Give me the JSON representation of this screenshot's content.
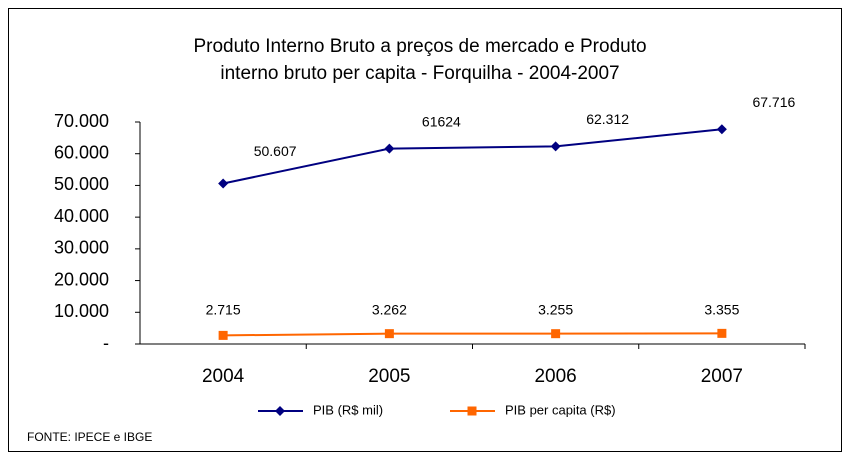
{
  "chart_data": {
    "type": "line",
    "title": [
      "Produto Interno Bruto a preços de mercado  e   Produto",
      "interno bruto per capita -  Forquilha - 2004-2007"
    ],
    "categories": [
      "2004",
      "2005",
      "2006",
      "2007"
    ],
    "series": [
      {
        "name": "PIB (R$ mil)",
        "color": "#000080",
        "marker": "diamond",
        "values": [
          50607,
          61624,
          62312,
          67716
        ],
        "value_labels": [
          "50.607",
          "61624",
          "62.312",
          "67.716"
        ]
      },
      {
        "name": "PIB per capita (R$)",
        "color": "#ff6600",
        "marker": "square",
        "values": [
          2715,
          3262,
          3255,
          3355
        ],
        "value_labels": [
          "2.715",
          "3.262",
          "3.255",
          "3.355"
        ]
      }
    ],
    "ylim": [
      0,
      70000
    ],
    "yticks": [
      {
        "value": 0,
        "label": "-"
      },
      {
        "value": 10000,
        "label": "10.000"
      },
      {
        "value": 20000,
        "label": "20.000"
      },
      {
        "value": 30000,
        "label": "30.000"
      },
      {
        "value": 40000,
        "label": "40.000"
      },
      {
        "value": 50000,
        "label": "50.000"
      },
      {
        "value": 60000,
        "label": "60.000"
      },
      {
        "value": 70000,
        "label": "70.000"
      }
    ],
    "legend": "bottom",
    "source": "FONTE: IPECE e IBGE"
  }
}
